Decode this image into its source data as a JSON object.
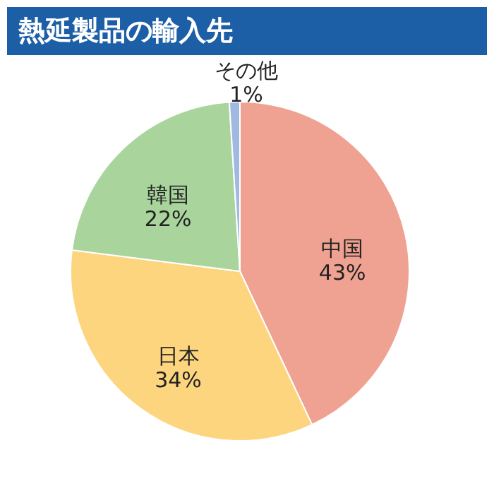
{
  "chart_data": {
    "type": "pie",
    "title": "熱延製品の輸入先",
    "categories": [
      "中国",
      "日本",
      "韓国",
      "その他"
    ],
    "values": [
      43,
      34,
      22,
      1
    ],
    "value_labels": [
      "43%",
      "34%",
      "22%",
      "1%"
    ],
    "colors": [
      "#f0a292",
      "#fdd57f",
      "#a9d59d",
      "#9fb9e0"
    ],
    "legend": false
  }
}
